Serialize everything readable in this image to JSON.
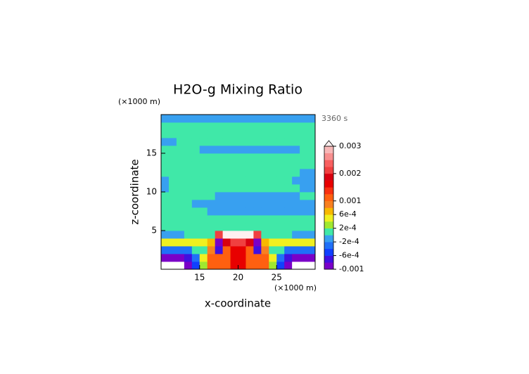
{
  "chart_data": {
    "type": "contour",
    "title": "H2O-g Mixing Ratio",
    "x_unit_label": "(×1000 m)",
    "y_unit_label": "(×1000 m)",
    "time_label": "3360 s",
    "xlabel": "x-coordinate",
    "ylabel": "z-coordinate",
    "xlim": [
      10,
      30
    ],
    "ylim": [
      0,
      20
    ],
    "xticks": [
      15,
      20,
      25
    ],
    "yticks": [
      5,
      10,
      15
    ],
    "x": [
      10.5,
      11.5,
      12.5,
      13.5,
      14.5,
      15.5,
      16.5,
      17.5,
      18.5,
      19.5,
      20.5,
      21.5,
      22.5,
      23.5,
      24.5,
      25.5,
      26.5,
      27.5,
      28.5,
      29.5
    ],
    "y": [
      0.5,
      1.5,
      2.5,
      3.5,
      4.5,
      5.5,
      6.5,
      7.5,
      8.5,
      9.5,
      10.5,
      11.5,
      12.5,
      13.5,
      14.5,
      15.5,
      16.5,
      17.5,
      18.5,
      19.5
    ],
    "z": [
      [
        -0.0012,
        -0.0012,
        -0.0012,
        -0.0009,
        -0.0005,
        0.0003,
        0.0011,
        0.0011,
        0.0011,
        0.0015,
        0.0015,
        0.0011,
        0.0011,
        0.0011,
        0.0003,
        -0.0005,
        -0.0009,
        -0.0012,
        -0.0012,
        -0.0012
      ],
      [
        -0.0009,
        -0.0009,
        -0.0009,
        -0.0007,
        -0.0003,
        0.0005,
        0.0011,
        0.0011,
        0.0011,
        0.0016,
        0.0016,
        0.0011,
        0.0011,
        0.0011,
        0.0005,
        -0.0003,
        -0.0007,
        -0.0009,
        -0.0009,
        -0.0009
      ],
      [
        -0.0003,
        -0.0003,
        -0.0003,
        -0.0003,
        0.0001,
        0.0001,
        0.0009,
        -0.0007,
        0.0011,
        0.0016,
        0.0016,
        0.0011,
        -0.0007,
        0.0009,
        0.0001,
        0.0001,
        -0.0003,
        -0.0003,
        -0.0003,
        -0.0003
      ],
      [
        0.0005,
        0.0005,
        0.0005,
        0.0005,
        0.0005,
        0.0005,
        0.0007,
        -0.0009,
        0.0018,
        0.002,
        0.002,
        0.0018,
        -0.0009,
        0.0007,
        0.0005,
        0.0005,
        0.0005,
        0.0005,
        0.0005,
        0.0005
      ],
      [
        -0.0001,
        -0.0001,
        -0.0001,
        0.0001,
        0.0001,
        0.0001,
        0.0001,
        0.002,
        0.0031,
        0.0031,
        0.0031,
        0.0031,
        0.002,
        0.0001,
        0.0001,
        0.0001,
        0.0001,
        -0.0001,
        -0.0001,
        -0.0001
      ],
      [
        0.0001,
        0.0001,
        0.0001,
        0.0001,
        0.0001,
        0.0001,
        0.0001,
        0.0001,
        0.0001,
        0.0001,
        0.0001,
        0.0001,
        0.0001,
        0.0001,
        0.0001,
        0.0001,
        0.0001,
        0.0001,
        0.0001,
        0.0001
      ],
      [
        0.0001,
        0.0001,
        0.0001,
        0.0001,
        0.0001,
        0.0001,
        0.0001,
        0.0001,
        0.0001,
        0.0001,
        0.0001,
        0.0001,
        0.0001,
        0.0001,
        0.0001,
        0.0001,
        0.0001,
        0.0001,
        0.0001,
        0.0001
      ],
      [
        0.0001,
        0.0001,
        0.0001,
        0.0001,
        0.0001,
        0.0001,
        -0.0001,
        -0.0001,
        -0.0001,
        -0.0001,
        -0.0001,
        -0.0001,
        -0.0001,
        -0.0001,
        -0.0001,
        -0.0001,
        -0.0001,
        -0.0001,
        -0.0001,
        -0.0001
      ],
      [
        0.0001,
        0.0001,
        0.0001,
        0.0001,
        -0.0001,
        -0.0001,
        -0.0001,
        -0.0001,
        -0.0001,
        -0.0001,
        -0.0001,
        -0.0001,
        -0.0001,
        -0.0001,
        -0.0001,
        -0.0001,
        -0.0001,
        -0.0001,
        -0.0001,
        -0.0001
      ],
      [
        0.0001,
        0.0001,
        0.0001,
        0.0001,
        0.0001,
        0.0001,
        0.0001,
        -0.0001,
        -0.0001,
        -0.0001,
        -0.0001,
        -0.0001,
        -0.0001,
        -0.0001,
        -0.0001,
        -0.0001,
        -0.0001,
        -0.0001,
        0.0001,
        0.0001
      ],
      [
        -0.0001,
        0.0001,
        0.0001,
        0.0001,
        0.0001,
        0.0001,
        0.0001,
        0.0001,
        0.0001,
        0.0001,
        0.0001,
        0.0001,
        0.0001,
        0.0001,
        0.0001,
        0.0001,
        0.0001,
        0.0001,
        -0.0001,
        -0.0001
      ],
      [
        -0.0001,
        0.0001,
        0.0001,
        0.0001,
        0.0001,
        0.0001,
        0.0001,
        0.0001,
        0.0001,
        0.0001,
        0.0001,
        0.0001,
        0.0001,
        0.0001,
        0.0001,
        0.0001,
        0.0001,
        -0.0001,
        -0.0001,
        -0.0001
      ],
      [
        0.0001,
        0.0001,
        0.0001,
        0.0001,
        0.0001,
        0.0001,
        0.0001,
        0.0001,
        0.0001,
        0.0001,
        0.0001,
        0.0001,
        0.0001,
        0.0001,
        0.0001,
        0.0001,
        0.0001,
        0.0001,
        -0.0001,
        -0.0001
      ],
      [
        0.0001,
        0.0001,
        0.0001,
        0.0001,
        0.0001,
        0.0001,
        0.0001,
        0.0001,
        0.0001,
        0.0001,
        0.0001,
        0.0001,
        0.0001,
        0.0001,
        0.0001,
        0.0001,
        0.0001,
        0.0001,
        0.0001,
        0.0001
      ],
      [
        0.0001,
        0.0001,
        0.0001,
        0.0001,
        0.0001,
        0.0001,
        0.0001,
        0.0001,
        0.0001,
        0.0001,
        0.0001,
        0.0001,
        0.0001,
        0.0001,
        0.0001,
        0.0001,
        0.0001,
        0.0001,
        0.0001,
        0.0001
      ],
      [
        0.0001,
        0.0001,
        0.0001,
        0.0001,
        0.0001,
        -0.0001,
        -0.0001,
        -0.0001,
        -0.0001,
        -0.0001,
        -0.0001,
        -0.0001,
        -0.0001,
        -0.0001,
        -0.0001,
        -0.0001,
        -0.0001,
        -0.0001,
        0.0001,
        0.0001
      ],
      [
        -0.0001,
        -0.0001,
        0.0001,
        0.0001,
        0.0001,
        0.0001,
        0.0001,
        0.0001,
        0.0001,
        0.0001,
        0.0001,
        0.0001,
        0.0001,
        0.0001,
        0.0001,
        0.0001,
        0.0001,
        0.0001,
        0.0001,
        0.0001
      ],
      [
        0.0001,
        0.0001,
        0.0001,
        0.0001,
        0.0001,
        0.0001,
        0.0001,
        0.0001,
        0.0001,
        0.0001,
        0.0001,
        0.0001,
        0.0001,
        0.0001,
        0.0001,
        0.0001,
        0.0001,
        0.0001,
        0.0001,
        0.0001
      ],
      [
        0.0001,
        0.0001,
        0.0001,
        0.0001,
        0.0001,
        0.0001,
        0.0001,
        0.0001,
        0.0001,
        0.0001,
        0.0001,
        0.0001,
        0.0001,
        0.0001,
        0.0001,
        0.0001,
        0.0001,
        0.0001,
        0.0001,
        0.0001
      ],
      [
        -0.0001,
        -0.0001,
        -0.0001,
        -0.0001,
        -0.0001,
        -0.0001,
        -0.0001,
        -0.0001,
        -0.0001,
        -0.0001,
        -0.0001,
        -0.0001,
        -0.0001,
        -0.0001,
        -0.0001,
        -0.0001,
        -0.0001,
        -0.0001,
        -0.0001,
        -0.0001
      ]
    ],
    "levels": [
      -0.001,
      -0.0008,
      -0.0006,
      -0.0004,
      -0.0002,
      0,
      0.0002,
      0.0004,
      0.0006,
      0.0008,
      0.001,
      0.00125,
      0.0015,
      0.00175,
      0.002,
      0.00225,
      0.0025,
      0.00275,
      0.003
    ],
    "colors": [
      "#7a00c8",
      "#4010e0",
      "#1040ff",
      "#2070f8",
      "#38a0f0",
      "#40e8a8",
      "#a0e830",
      "#f0f020",
      "#f8b800",
      "#f88020",
      "#ff6010",
      "#f83010",
      "#e80000",
      "#d80010",
      "#f04040",
      "#f86060",
      "#f89090",
      "#f8b8b8"
    ],
    "under_color": "#ffffff",
    "over_color": "#fff0f0",
    "colorbar_ticks": [
      0.003,
      0.002,
      0.001,
      {
        "value": 0.0006,
        "label": "6e-4"
      },
      {
        "value": 0.0002,
        "label": "2e-4"
      },
      {
        "value": -0.0002,
        "label": "-2e-4"
      },
      {
        "value": -0.0006,
        "label": "-6e-4"
      },
      -0.001
    ]
  }
}
